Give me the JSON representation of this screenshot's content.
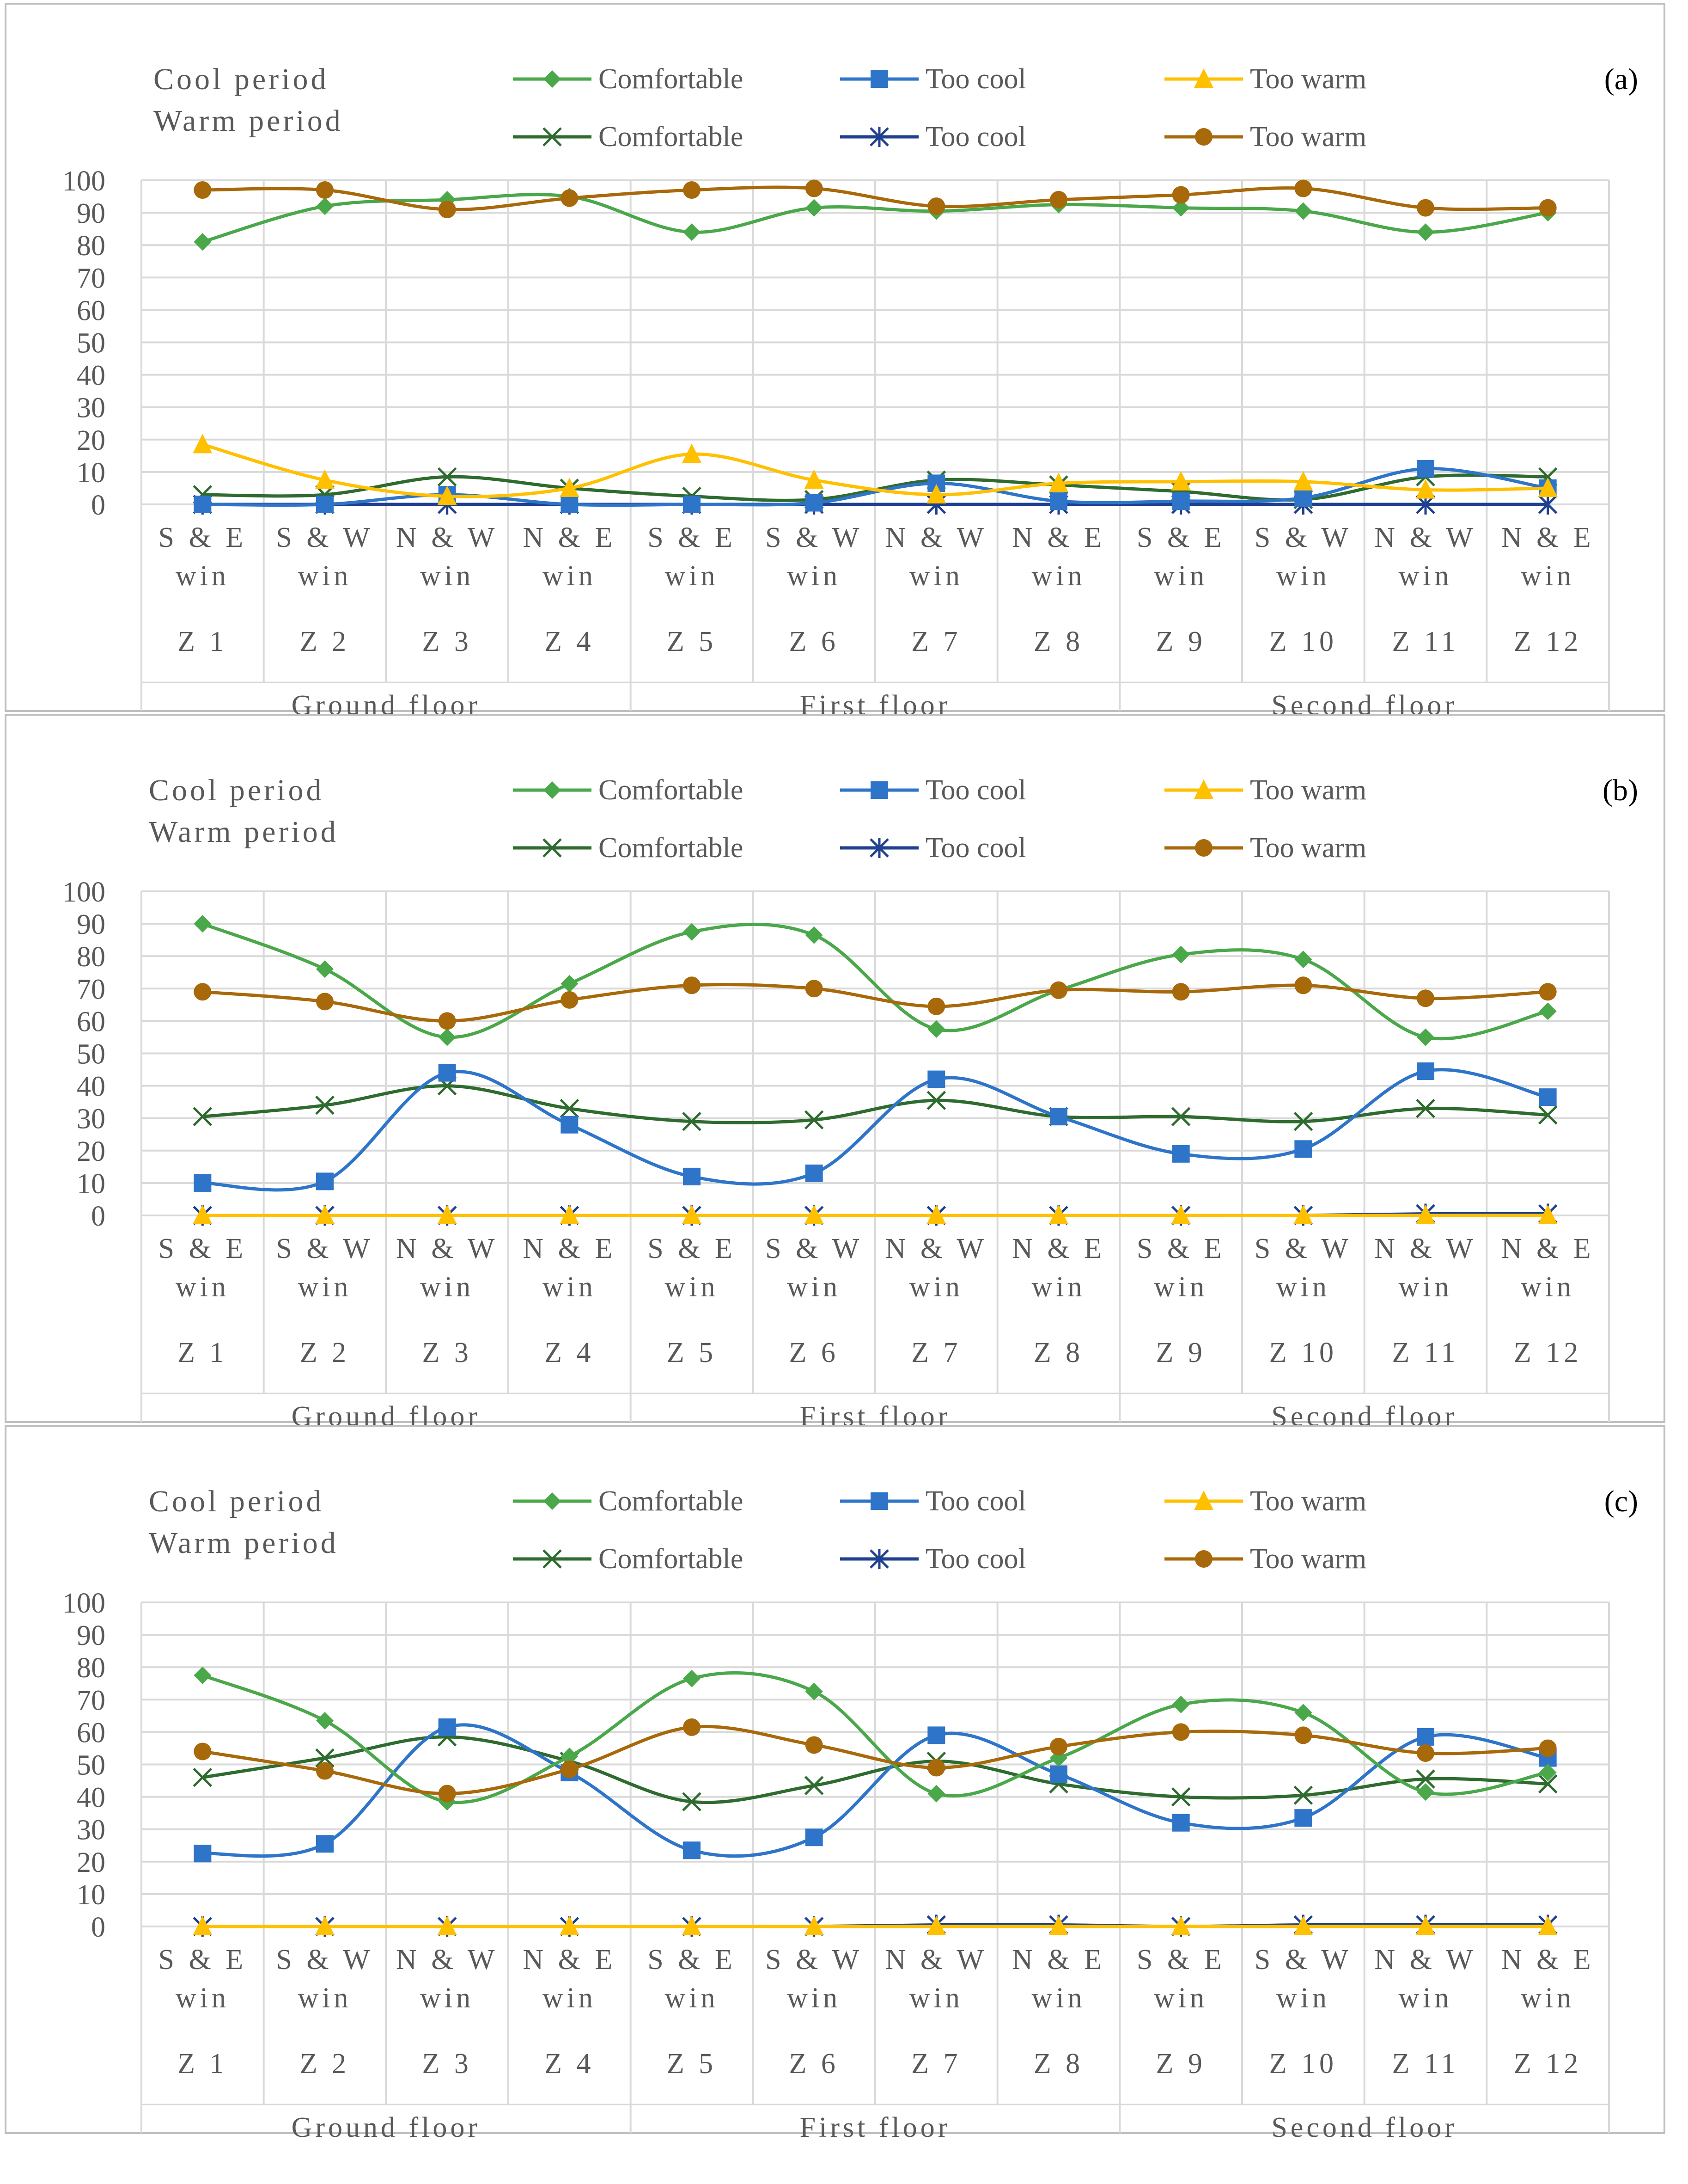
{
  "figure": {
    "categories": [
      "Z 1",
      "Z 2",
      "Z 3",
      "Z 4",
      "Z 5",
      "Z 6",
      "Z 7",
      "Z 8",
      "Z 9",
      "Z 10",
      "Z 11",
      "Z 12"
    ],
    "window_labels": [
      [
        "S & E",
        "win"
      ],
      [
        "S & W",
        "win"
      ],
      [
        "N & W",
        "win"
      ],
      [
        "N & E",
        "win"
      ],
      [
        "S & E",
        "win"
      ],
      [
        "S & W",
        "win"
      ],
      [
        "N & W",
        "win"
      ],
      [
        "N & E",
        "win"
      ],
      [
        "S & E",
        "win"
      ],
      [
        "S & W",
        "win"
      ],
      [
        "N & W",
        "win"
      ],
      [
        "N & E",
        "win"
      ]
    ],
    "floors": [
      "Ground floor",
      "First floor",
      "Second floor"
    ],
    "period_labels": [
      "Cool period",
      "Warm period"
    ],
    "series_style": [
      {
        "name": "Comfortable",
        "period": "cool",
        "color": "#4aa84a",
        "marker": "diamond"
      },
      {
        "name": "Too cool",
        "period": "cool",
        "color": "#2e75c9",
        "marker": "square"
      },
      {
        "name": "Too warm",
        "period": "cool",
        "color": "#ffc000",
        "marker": "triangle"
      },
      {
        "name": "Comfortable",
        "period": "warm",
        "color": "#2e6b2e",
        "marker": "x"
      },
      {
        "name": "Too cool",
        "period": "warm",
        "color": "#1f3f8f",
        "marker": "star"
      },
      {
        "name": "Too warm",
        "period": "warm",
        "color": "#a8690a",
        "marker": "circle"
      }
    ]
  },
  "chart_data": [
    {
      "type": "line",
      "panel_label": "(a)",
      "ylim": [
        0,
        100
      ],
      "yticks": [
        0,
        10,
        20,
        30,
        40,
        50,
        60,
        70,
        80,
        90,
        100
      ],
      "series": [
        {
          "name": "Comfortable",
          "period": "cool",
          "values": [
            81,
            92,
            94,
            95,
            84,
            91.5,
            90.5,
            92.5,
            91.5,
            90.5,
            84,
            90
          ]
        },
        {
          "name": "Too cool",
          "period": "cool",
          "values": [
            0,
            0,
            3,
            0,
            0,
            0.5,
            6.5,
            1,
            1,
            2,
            11,
            5
          ]
        },
        {
          "name": "Too warm",
          "period": "cool",
          "values": [
            18.5,
            7.5,
            2.5,
            5,
            15.5,
            7.5,
            3,
            6.5,
            7,
            7,
            4.5,
            5
          ]
        },
        {
          "name": "Comfortable",
          "period": "warm",
          "values": [
            3,
            3,
            8.5,
            5,
            2.5,
            1.5,
            7.5,
            6,
            4,
            1.5,
            8.5,
            8.5
          ]
        },
        {
          "name": "Too cool",
          "period": "warm",
          "values": [
            0,
            0,
            0,
            0,
            0,
            0,
            0,
            0,
            0,
            0,
            0,
            0
          ]
        },
        {
          "name": "Too warm",
          "period": "warm",
          "values": [
            97,
            97,
            91,
            94.5,
            97,
            97.5,
            92,
            94,
            95.5,
            97.5,
            91.5,
            91.5
          ]
        }
      ]
    },
    {
      "type": "line",
      "panel_label": "(b)",
      "ylim": [
        0,
        100
      ],
      "yticks": [
        0,
        10,
        20,
        30,
        40,
        50,
        60,
        70,
        80,
        90,
        100
      ],
      "series": [
        {
          "name": "Comfortable",
          "period": "cool",
          "values": [
            90,
            76,
            55,
            71.5,
            87.5,
            86.5,
            57.5,
            69.5,
            80.5,
            79,
            55,
            63
          ]
        },
        {
          "name": "Too cool",
          "period": "cool",
          "values": [
            10,
            10.5,
            44,
            28,
            12,
            13,
            42,
            30.5,
            19,
            20.5,
            44.5,
            36.5
          ]
        },
        {
          "name": "Too warm",
          "period": "cool",
          "values": [
            0,
            0,
            0,
            0,
            0,
            0,
            0,
            0,
            0,
            0,
            0,
            0
          ]
        },
        {
          "name": "Comfortable",
          "period": "warm",
          "values": [
            30.5,
            34,
            40,
            33,
            29,
            29.5,
            35.5,
            30.5,
            30.5,
            29,
            33,
            31
          ]
        },
        {
          "name": "Too cool",
          "period": "warm",
          "values": [
            0,
            0,
            0,
            0,
            0,
            0,
            0,
            0,
            0,
            0,
            0.5,
            0.5
          ]
        },
        {
          "name": "Too warm",
          "period": "warm",
          "values": [
            69,
            66,
            60,
            66.5,
            71,
            70,
            64.5,
            69.5,
            69,
            71,
            67,
            69
          ]
        }
      ]
    },
    {
      "type": "line",
      "panel_label": "(c)",
      "ylim": [
        0,
        100
      ],
      "yticks": [
        0,
        10,
        20,
        30,
        40,
        50,
        60,
        70,
        80,
        90,
        100
      ],
      "series": [
        {
          "name": "Comfortable",
          "period": "cool",
          "values": [
            77.5,
            63.5,
            38.5,
            52.5,
            76.5,
            72.5,
            41,
            52,
            68.5,
            66,
            41.5,
            47.5
          ]
        },
        {
          "name": "Too cool",
          "period": "cool",
          "values": [
            22.5,
            25.5,
            61.5,
            47.5,
            23.5,
            27.5,
            59,
            47,
            32,
            33.5,
            58.5,
            52
          ]
        },
        {
          "name": "Too warm",
          "period": "cool",
          "values": [
            0,
            0,
            0,
            0,
            0,
            0,
            0,
            0,
            0,
            0,
            0,
            0
          ]
        },
        {
          "name": "Comfortable",
          "period": "warm",
          "values": [
            46,
            52,
            58.5,
            51,
            38.5,
            43.5,
            51,
            44,
            40,
            40.5,
            45.5,
            44
          ]
        },
        {
          "name": "Too cool",
          "period": "warm",
          "values": [
            0,
            0,
            0,
            0,
            0,
            0,
            0.5,
            0.5,
            0,
            0.5,
            0.5,
            0.5
          ]
        },
        {
          "name": "Too warm",
          "period": "warm",
          "values": [
            54,
            48,
            41,
            48.5,
            61.5,
            56,
            49,
            55.5,
            60,
            59,
            53.5,
            55
          ]
        }
      ]
    }
  ]
}
